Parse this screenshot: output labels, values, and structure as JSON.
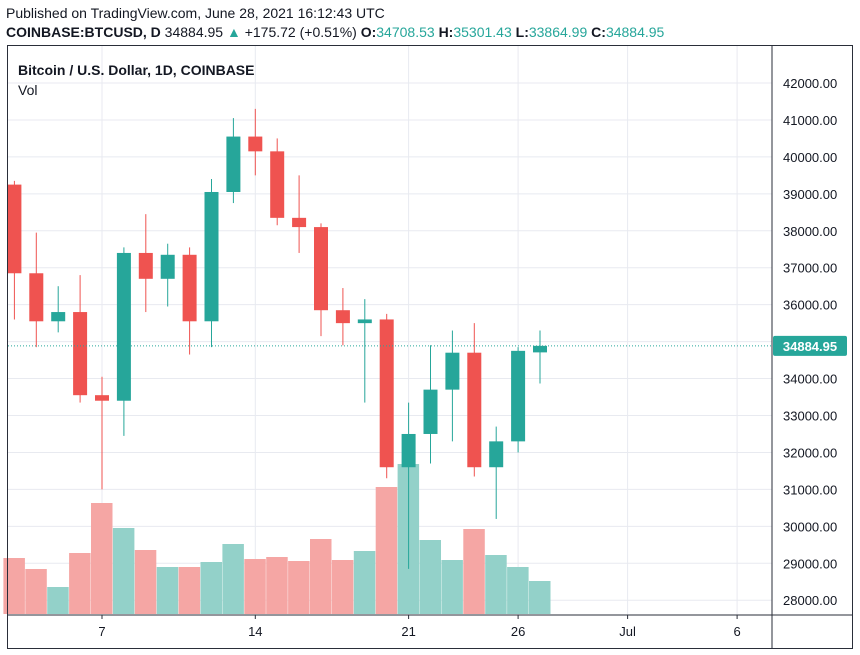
{
  "header": {
    "published": "Published on TradingView.com, June 28, 2021 16:12:43 UTC",
    "symbol": "COINBASE:BTCUSD, D",
    "last": "34884.95",
    "change_arrow": "▲",
    "change": "+175.72 (+0.51%)",
    "o_label": "O:",
    "o_value": "34708.53",
    "h_label": "H:",
    "h_value": "35301.43",
    "l_label": "L:",
    "l_value": "33864.99",
    "c_label": "C:",
    "c_value": "34884.95"
  },
  "legend": {
    "title": "Bitcoin / U.S. Dollar, 1D, COINBASE",
    "volume_label": "Vol"
  },
  "price_label": "34884.95",
  "colors": {
    "up": "#26a69a",
    "down": "#ef5350",
    "vol_up": "#93d1c9",
    "vol_down": "#f5a6a4",
    "grid": "#e8eaf0",
    "axis": "#2a2e39"
  },
  "chart_data": {
    "type": "candlestick",
    "price_ylim": [
      27500,
      42500
    ],
    "y_ticks": [
      "28000.00",
      "29000.00",
      "30000.00",
      "31000.00",
      "32000.00",
      "33000.00",
      "34000.00",
      "35000.00",
      "36000.00",
      "37000.00",
      "38000.00",
      "39000.00",
      "40000.00",
      "41000.00",
      "42000.00"
    ],
    "x_ticks": [
      "7",
      "14",
      "21",
      "26",
      "Jul",
      "6"
    ],
    "x_tick_positions": [
      7,
      14,
      21,
      26,
      31,
      36
    ],
    "grid": true,
    "candles": [
      {
        "d": 3,
        "o": 39250,
        "h": 39350,
        "l": 35600,
        "c": 36850
      },
      {
        "d": 4,
        "o": 36850,
        "h": 37950,
        "l": 34850,
        "c": 35550
      },
      {
        "d": 5,
        "o": 35550,
        "h": 36500,
        "l": 35250,
        "c": 35800
      },
      {
        "d": 6,
        "o": 35800,
        "h": 36800,
        "l": 33350,
        "c": 33550
      },
      {
        "d": 7,
        "o": 33550,
        "h": 34050,
        "l": 31000,
        "c": 33400
      },
      {
        "d": 8,
        "o": 33400,
        "h": 37550,
        "l": 32450,
        "c": 37400
      },
      {
        "d": 9,
        "o": 37400,
        "h": 38450,
        "l": 35800,
        "c": 36700
      },
      {
        "d": 10,
        "o": 36700,
        "h": 37650,
        "l": 35950,
        "c": 37350
      },
      {
        "d": 11,
        "o": 37350,
        "h": 37550,
        "l": 34650,
        "c": 35550
      },
      {
        "d": 12,
        "o": 35550,
        "h": 39400,
        "l": 34850,
        "c": 39050
      },
      {
        "d": 13,
        "o": 39050,
        "h": 41050,
        "l": 38750,
        "c": 40550
      },
      {
        "d": 14,
        "o": 40550,
        "h": 41300,
        "l": 39500,
        "c": 40150
      },
      {
        "d": 15,
        "o": 40150,
        "h": 40500,
        "l": 38150,
        "c": 38350
      },
      {
        "d": 16,
        "o": 38350,
        "h": 39500,
        "l": 37400,
        "c": 38100
      },
      {
        "d": 17,
        "o": 38100,
        "h": 38200,
        "l": 35150,
        "c": 35850
      },
      {
        "d": 18,
        "o": 35850,
        "h": 36450,
        "l": 34900,
        "c": 35500
      },
      {
        "d": 19,
        "o": 35500,
        "h": 36150,
        "l": 33350,
        "c": 35600
      },
      {
        "d": 20,
        "o": 35600,
        "h": 35750,
        "l": 31300,
        "c": 31600
      },
      {
        "d": 21,
        "o": 31600,
        "h": 33350,
        "l": 28850,
        "c": 32500
      },
      {
        "d": 22,
        "o": 32500,
        "h": 34900,
        "l": 31700,
        "c": 33700
      },
      {
        "d": 23,
        "o": 33700,
        "h": 35300,
        "l": 32300,
        "c": 34700
      },
      {
        "d": 24,
        "o": 34700,
        "h": 35500,
        "l": 31350,
        "c": 31600
      },
      {
        "d": 25,
        "o": 31600,
        "h": 32700,
        "l": 30200,
        "c": 32300
      },
      {
        "d": 26,
        "o": 32300,
        "h": 34850,
        "l": 32000,
        "c": 34750
      },
      {
        "d": 27,
        "o": 34708.53,
        "h": 35301.43,
        "l": 33864.99,
        "c": 34884.95
      }
    ],
    "volume": [
      0.56,
      0.45,
      0.27,
      0.61,
      1.11,
      0.86,
      0.64,
      0.47,
      0.47,
      0.52,
      0.7,
      0.55,
      0.57,
      0.53,
      0.75,
      0.54,
      0.63,
      1.27,
      1.5,
      0.74,
      0.54,
      0.85,
      0.59,
      0.47,
      0.33
    ]
  }
}
